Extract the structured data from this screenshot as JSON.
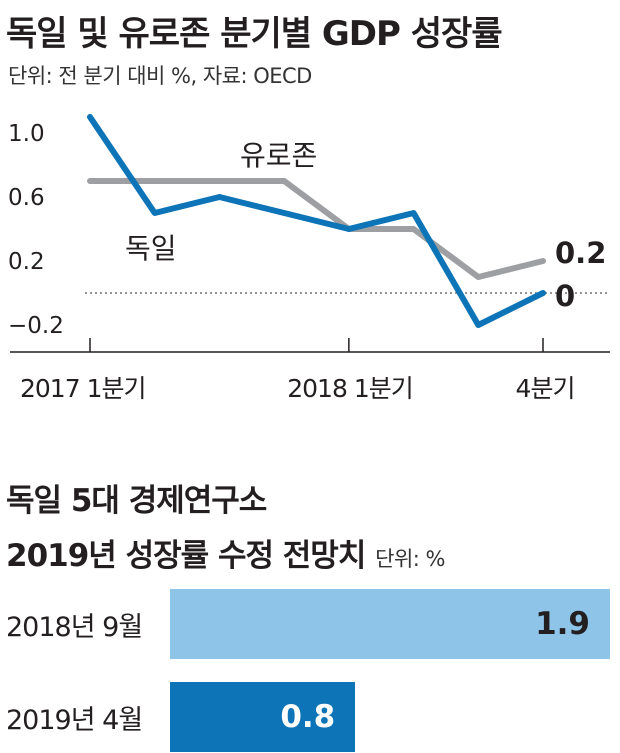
{
  "chart_data": [
    {
      "type": "line",
      "title": "독일 및 유로존 분기별 GDP 성장률",
      "subtitle": "단위: 전 분기 대비 %, 자료: OECD",
      "x": [
        "2017 1분기",
        "2017 2분기",
        "2017 3분기",
        "2017 4분기",
        "2018 1분기",
        "2018 2분기",
        "2018 3분기",
        "2018 4분기"
      ],
      "x_tick_labels": [
        "2017 1분기",
        "2018 1분기",
        "4분기"
      ],
      "y_ticks": [
        "1.0",
        "0.6",
        "0.2",
        "−0.2"
      ],
      "ylim": [
        -0.4,
        1.1
      ],
      "series": [
        {
          "name": "유로존",
          "values": [
            0.7,
            0.7,
            0.7,
            0.7,
            0.4,
            0.4,
            0.1,
            0.2
          ],
          "color": "#9d9fa2",
          "end_label": "0.2"
        },
        {
          "name": "독일",
          "values": [
            1.1,
            0.5,
            0.6,
            0.5,
            0.4,
            0.5,
            -0.2,
            0.0
          ],
          "color": "#0d74b8",
          "end_label": "0"
        }
      ],
      "zero_line": "dotted",
      "grid": false
    },
    {
      "type": "bar",
      "orientation": "horizontal",
      "title_line1": "독일 5대 경제연구소",
      "title_line2": "2019년 성장률 수정 전망치",
      "unit": "단위: %",
      "categories": [
        "2018년 9월",
        "2019년 4월"
      ],
      "values": [
        1.9,
        0.8
      ],
      "value_labels": [
        "1.9",
        "0.8"
      ],
      "colors": [
        "#8ec4e8",
        "#0d74b8"
      ],
      "xlim": [
        0,
        1.9
      ]
    }
  ]
}
